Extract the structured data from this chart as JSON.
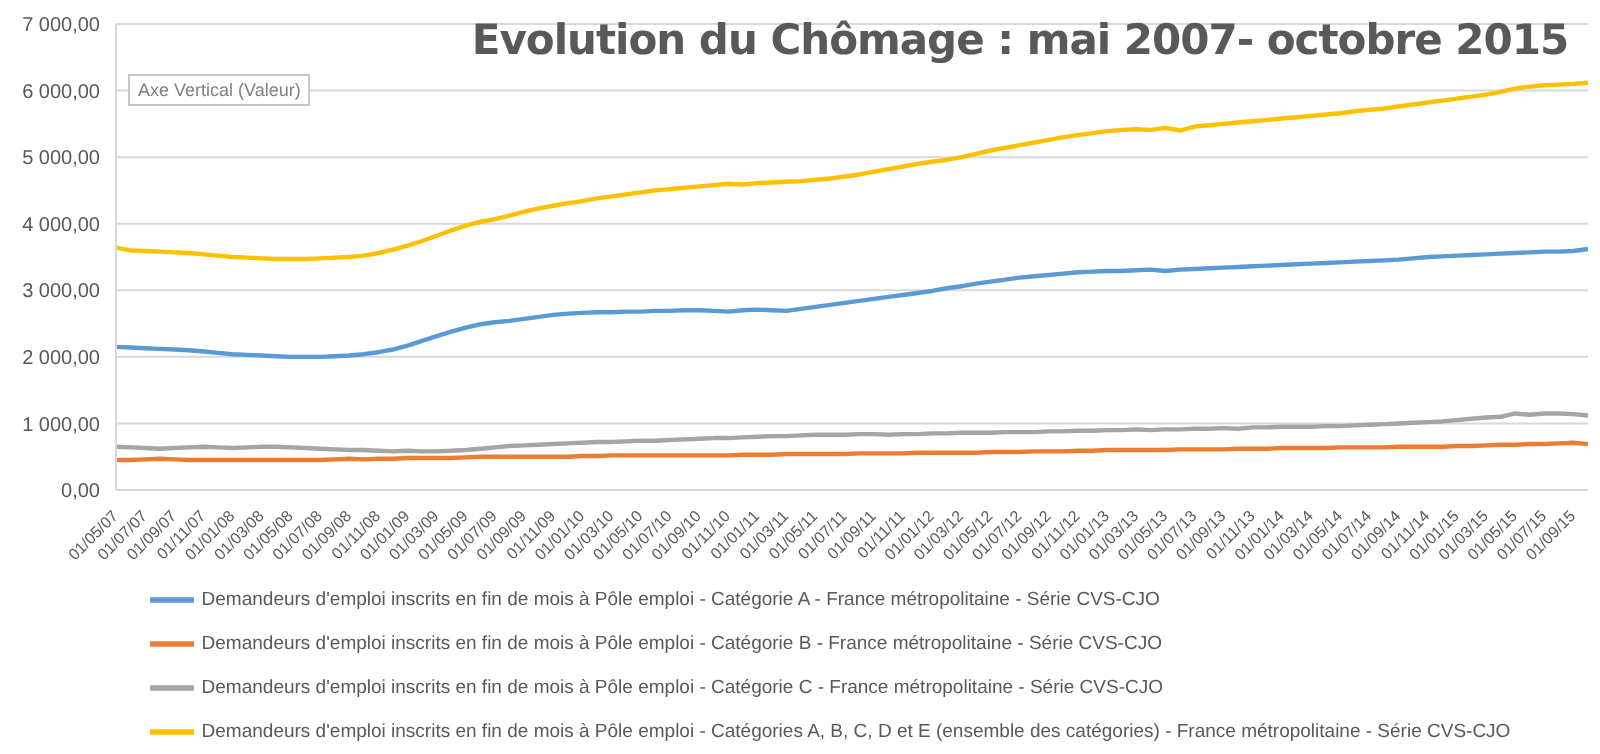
{
  "chart_data": {
    "type": "line",
    "title": "Evolution du Chômage : mai 2007- octobre 2015",
    "ylabel": "Axe Vertical (Valeur)",
    "categories": [
      "01/05/07",
      null,
      "01/07/07",
      null,
      "01/09/07",
      null,
      "01/11/07",
      null,
      "01/01/08",
      null,
      "01/03/08",
      null,
      "01/05/08",
      null,
      "01/07/08",
      null,
      "01/09/08",
      null,
      "01/11/08",
      null,
      "01/01/09",
      null,
      "01/03/09",
      null,
      "01/05/09",
      null,
      "01/07/09",
      null,
      "01/09/09",
      null,
      "01/11/09",
      null,
      "01/01/10",
      null,
      "01/03/10",
      null,
      "01/05/10",
      null,
      "01/07/10",
      null,
      "01/09/10",
      null,
      "01/11/10",
      null,
      "01/01/11",
      null,
      "01/03/11",
      null,
      "01/05/11",
      null,
      "01/07/11",
      null,
      "01/09/11",
      null,
      "01/11/11",
      null,
      "01/01/12",
      null,
      "01/03/12",
      null,
      "01/05/12",
      null,
      "01/07/12",
      null,
      "01/09/12",
      null,
      "01/11/12",
      null,
      "01/01/13",
      null,
      "01/03/13",
      null,
      "01/05/13",
      null,
      "01/07/13",
      null,
      "01/09/13",
      null,
      "01/11/13",
      null,
      "01/01/14",
      null,
      "01/03/14",
      null,
      "01/05/14",
      null,
      "01/07/14",
      null,
      "01/09/14",
      null,
      "01/11/14",
      null,
      "01/01/15",
      null,
      "01/03/15",
      null,
      "01/05/15",
      null,
      "01/07/15",
      null,
      "01/09/15",
      null
    ],
    "series": [
      {
        "name": "Demandeurs d'emploi inscrits en fin de mois à Pôle emploi - Catégorie A - France métropolitaine - Série CVS-CJO",
        "color": "#5b9bd5",
        "values": [
          2150,
          2140,
          2130,
          2120,
          2110,
          2100,
          2080,
          2060,
          2040,
          2030,
          2020,
          2010,
          2000,
          2000,
          2000,
          2010,
          2020,
          2040,
          2070,
          2110,
          2170,
          2240,
          2310,
          2380,
          2440,
          2490,
          2520,
          2540,
          2570,
          2600,
          2630,
          2650,
          2660,
          2670,
          2670,
          2680,
          2680,
          2690,
          2690,
          2700,
          2700,
          2690,
          2680,
          2700,
          2710,
          2700,
          2690,
          2720,
          2750,
          2780,
          2810,
          2840,
          2870,
          2900,
          2930,
          2960,
          2990,
          3030,
          3060,
          3100,
          3130,
          3160,
          3190,
          3210,
          3230,
          3250,
          3270,
          3280,
          3290,
          3290,
          3300,
          3310,
          3290,
          3310,
          3320,
          3330,
          3340,
          3350,
          3360,
          3370,
          3380,
          3390,
          3400,
          3410,
          3420,
          3430,
          3440,
          3450,
          3460,
          3480,
          3500,
          3510,
          3520,
          3530,
          3540,
          3550,
          3560,
          3570,
          3580,
          3580,
          3590,
          3620
        ]
      },
      {
        "name": "Demandeurs d'emploi inscrits en fin de mois à Pôle emploi - Catégorie B - France métropolitaine - Série CVS-CJO",
        "color": "#ed7d31",
        "values": [
          450,
          450,
          460,
          470,
          460,
          450,
          450,
          450,
          450,
          450,
          450,
          450,
          450,
          450,
          450,
          460,
          470,
          460,
          470,
          470,
          480,
          480,
          480,
          480,
          490,
          500,
          500,
          500,
          500,
          500,
          500,
          500,
          510,
          510,
          520,
          520,
          520,
          520,
          520,
          520,
          520,
          520,
          520,
          530,
          530,
          530,
          540,
          540,
          540,
          540,
          540,
          550,
          550,
          550,
          550,
          560,
          560,
          560,
          560,
          560,
          570,
          570,
          570,
          580,
          580,
          580,
          590,
          590,
          600,
          600,
          600,
          600,
          600,
          610,
          610,
          610,
          610,
          620,
          620,
          620,
          630,
          630,
          630,
          630,
          640,
          640,
          640,
          640,
          650,
          650,
          650,
          650,
          660,
          660,
          670,
          680,
          680,
          690,
          690,
          700,
          710,
          690
        ]
      },
      {
        "name": "Demandeurs d'emploi inscrits en fin de mois à Pôle emploi - Catégorie C - France métropolitaine - Série CVS-CJO",
        "color": "#a5a5a5",
        "values": [
          650,
          640,
          630,
          620,
          630,
          640,
          650,
          640,
          630,
          640,
          650,
          650,
          640,
          630,
          620,
          610,
          600,
          600,
          590,
          580,
          590,
          580,
          580,
          590,
          600,
          620,
          640,
          660,
          670,
          680,
          690,
          700,
          710,
          720,
          720,
          730,
          740,
          740,
          750,
          760,
          770,
          780,
          780,
          790,
          800,
          810,
          810,
          820,
          830,
          830,
          830,
          840,
          840,
          830,
          840,
          840,
          850,
          850,
          860,
          860,
          860,
          870,
          870,
          870,
          880,
          880,
          890,
          890,
          900,
          900,
          910,
          900,
          910,
          910,
          920,
          920,
          930,
          920,
          940,
          940,
          950,
          950,
          950,
          960,
          960,
          970,
          980,
          990,
          1000,
          1010,
          1020,
          1030,
          1050,
          1070,
          1090,
          1100,
          1150,
          1130,
          1150,
          1150,
          1140,
          1120
        ]
      },
      {
        "name": "Demandeurs d'emploi inscrits en fin de mois à Pôle emploi - Catégories A, B, C, D et E (ensemble des catégories) - France métropolitaine - Série CVS-CJO",
        "color": "#ffc000",
        "values": [
          3640,
          3600,
          3590,
          3580,
          3570,
          3560,
          3540,
          3520,
          3500,
          3490,
          3480,
          3470,
          3470,
          3470,
          3480,
          3490,
          3500,
          3520,
          3560,
          3610,
          3670,
          3740,
          3820,
          3900,
          3970,
          4030,
          4070,
          4120,
          4180,
          4230,
          4270,
          4310,
          4340,
          4380,
          4410,
          4440,
          4470,
          4500,
          4520,
          4540,
          4560,
          4580,
          4600,
          4590,
          4610,
          4620,
          4630,
          4640,
          4660,
          4680,
          4710,
          4740,
          4780,
          4820,
          4860,
          4900,
          4930,
          4960,
          5000,
          5050,
          5100,
          5140,
          5180,
          5220,
          5260,
          5300,
          5330,
          5360,
          5390,
          5410,
          5420,
          5410,
          5440,
          5400,
          5460,
          5480,
          5500,
          5520,
          5540,
          5560,
          5580,
          5600,
          5620,
          5640,
          5660,
          5690,
          5710,
          5730,
          5760,
          5790,
          5820,
          5850,
          5880,
          5910,
          5940,
          5980,
          6030,
          6060,
          6080,
          6090,
          6100,
          6120
        ]
      }
    ],
    "ylim": [
      0,
      7000
    ],
    "yticks": [
      {
        "value": 0,
        "label": "0,00"
      },
      {
        "value": 1000,
        "label": "1 000,00"
      },
      {
        "value": 2000,
        "label": "2 000,00"
      },
      {
        "value": 3000,
        "label": "3 000,00"
      },
      {
        "value": 4000,
        "label": "4 000,00"
      },
      {
        "value": 5000,
        "label": "5 000,00"
      },
      {
        "value": 6000,
        "label": "6 000,00"
      },
      {
        "value": 7000,
        "label": "7 000,00"
      }
    ],
    "grid": "y",
    "legend": "bottom",
    "marker": "none",
    "line_style": "solid"
  }
}
